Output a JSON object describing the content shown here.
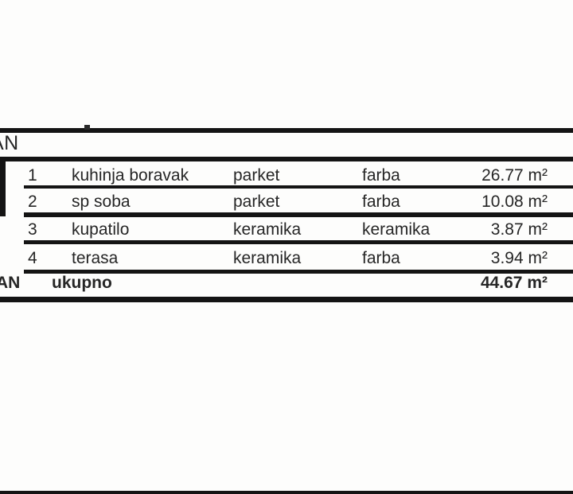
{
  "schedule": {
    "header_label": "AN",
    "columns": [
      "number",
      "room",
      "floor_finish",
      "wall_finish",
      "area"
    ],
    "rows": [
      {
        "num": "1",
        "name": "kuhinja boravak",
        "floor": "parket",
        "wall": "farba",
        "area": "26.77 m²"
      },
      {
        "num": "2",
        "name": "sp soba",
        "floor": "parket",
        "wall": "farba",
        "area": "10.08 m²"
      },
      {
        "num": "3",
        "name": "kupatilo",
        "floor": "keramika",
        "wall": "keramika",
        "area": "3.87 m²"
      },
      {
        "num": "4",
        "name": "terasa",
        "floor": "keramika",
        "wall": "farba",
        "area": "3.94 m²"
      }
    ],
    "total": {
      "label_prefix": "AN",
      "label": "ukupno",
      "area": "44.67 m²"
    }
  },
  "colors": {
    "rule": "#141414",
    "text": "#262626",
    "background": "#fdfdfc"
  }
}
